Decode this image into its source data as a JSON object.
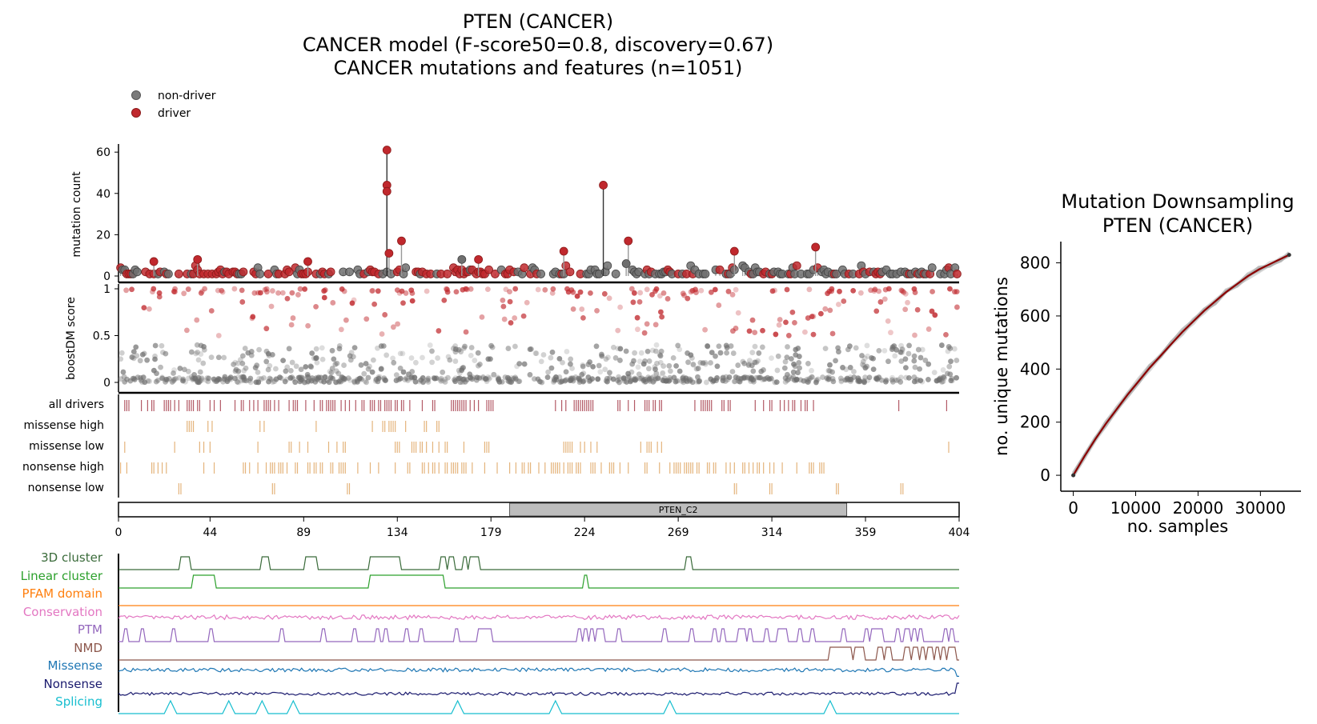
{
  "titles": {
    "main": [
      "PTEN (CANCER)",
      "CANCER model (F-score50=0.8, discovery=0.67)",
      "CANCER mutations and features (n=1051)"
    ],
    "side": [
      "Mutation Downsampling",
      "PTEN (CANCER)"
    ]
  },
  "legend": [
    {
      "label": "non-driver",
      "color": "#7a7a7a"
    },
    {
      "label": "driver",
      "color": "#c0282d"
    }
  ],
  "colors": {
    "driver": "#c0282d",
    "nondriver": "#6e6e6e",
    "alldrivers_ticks": "#b35a66",
    "csqn_ticks": "#e4b47c",
    "domain_fill": "#bdbdbd",
    "curve": "#8b0000"
  },
  "chart_data": [
    {
      "type": "scatter",
      "name": "lollipop",
      "ylabel": "mutation count",
      "ylim": [
        0,
        62
      ],
      "yticks": [
        0,
        20,
        40,
        60
      ],
      "xlim": [
        0,
        404
      ],
      "tall_stems": [
        {
          "pos": 129,
          "count": 61,
          "driver": true
        },
        {
          "pos": 129,
          "count": 44,
          "driver": true
        },
        {
          "pos": 129,
          "count": 41,
          "driver": true
        },
        {
          "pos": 130,
          "count": 11,
          "driver": true
        },
        {
          "pos": 136,
          "count": 17,
          "driver": true
        },
        {
          "pos": 233,
          "count": 44,
          "driver": true
        },
        {
          "pos": 245,
          "count": 17,
          "driver": true
        },
        {
          "pos": 214,
          "count": 12,
          "driver": true
        },
        {
          "pos": 296,
          "count": 12,
          "driver": true
        },
        {
          "pos": 335,
          "count": 14,
          "driver": true
        },
        {
          "pos": 17,
          "count": 7,
          "driver": true
        },
        {
          "pos": 38,
          "count": 8,
          "driver": true
        },
        {
          "pos": 91,
          "count": 7,
          "driver": true
        },
        {
          "pos": 165,
          "count": 8,
          "driver": false
        },
        {
          "pos": 173,
          "count": 8,
          "driver": true
        },
        {
          "pos": 244,
          "count": 6,
          "driver": false
        }
      ]
    },
    {
      "type": "scatter",
      "name": "boostDM",
      "ylabel": "boostDM score",
      "yticks": [
        0,
        0.5,
        1
      ],
      "ylim": [
        -0.02,
        1.02
      ]
    },
    {
      "type": "table",
      "name": "consequence tracks",
      "rows": [
        "all drivers",
        "missense high",
        "missense low",
        "nonsense high",
        "nonsense low"
      ],
      "domain": {
        "label": "PTEN_C2",
        "start": 188,
        "end": 350
      },
      "xticks": [
        0,
        44,
        89,
        134,
        179,
        224,
        269,
        314,
        359,
        404
      ]
    },
    {
      "type": "line",
      "name": "features",
      "tracks": [
        {
          "label": "3D cluster",
          "color": "#3a6b3a"
        },
        {
          "label": "Linear cluster",
          "color": "#2ca02c"
        },
        {
          "label": "PFAM domain",
          "color": "#ff7f0e"
        },
        {
          "label": "Conservation",
          "color": "#e377c2"
        },
        {
          "label": "PTM",
          "color": "#9467bd"
        },
        {
          "label": "NMD",
          "color": "#8c564b"
        },
        {
          "label": "Missense",
          "color": "#1f77b4"
        },
        {
          "label": "Nonsense",
          "color": "#1a1a6e"
        },
        {
          "label": "Splicing",
          "color": "#17becf"
        }
      ],
      "steps": {
        "3D cluster": [
          [
            30,
            34
          ],
          [
            69,
            72
          ],
          [
            90,
            92
          ],
          [
            93,
            95
          ],
          [
            121,
            131
          ],
          [
            132,
            133
          ],
          [
            134,
            135
          ],
          [
            155,
            157
          ],
          [
            159,
            161
          ],
          [
            166,
            167
          ],
          [
            169,
            170
          ],
          [
            171,
            173
          ],
          [
            273,
            275
          ]
        ],
        "Linear cluster": [
          [
            36,
            46
          ],
          [
            121,
            156
          ],
          [
            224,
            225
          ]
        ],
        "PTM": [
          [
            3,
            4
          ],
          [
            11,
            12
          ],
          [
            26,
            27
          ],
          [
            44,
            45
          ],
          [
            78,
            79
          ],
          [
            98,
            99
          ],
          [
            113,
            114
          ],
          [
            124,
            125
          ],
          [
            128,
            129
          ],
          [
            138,
            139
          ],
          [
            145,
            146
          ],
          [
            162,
            163
          ],
          [
            173,
            179
          ],
          [
            221,
            222
          ],
          [
            224,
            225
          ],
          [
            227,
            228
          ],
          [
            230,
            231
          ],
          [
            232,
            233
          ],
          [
            240,
            241
          ],
          [
            262,
            263
          ],
          [
            275,
            276
          ],
          [
            286,
            287
          ],
          [
            290,
            291
          ],
          [
            298,
            299
          ],
          [
            300,
            301
          ],
          [
            303,
            304
          ],
          [
            311,
            312
          ],
          [
            317,
            318
          ],
          [
            319,
            321
          ],
          [
            327,
            328
          ],
          [
            333,
            334
          ],
          [
            348,
            349
          ],
          [
            359,
            360
          ],
          [
            362,
            363
          ],
          [
            364,
            365
          ],
          [
            366,
            367
          ],
          [
            374,
            375
          ],
          [
            378,
            379
          ],
          [
            379,
            380
          ],
          [
            382,
            383
          ],
          [
            385,
            386
          ],
          [
            397,
            398
          ],
          [
            400,
            401
          ]
        ],
        "NMD": [
          [
            342,
            344
          ],
          [
            345,
            347
          ],
          [
            348,
            350
          ],
          [
            351,
            352
          ],
          [
            354,
            356
          ],
          [
            357,
            358
          ],
          [
            365,
            367
          ],
          [
            369,
            371
          ],
          [
            378,
            380
          ],
          [
            382,
            384
          ],
          [
            386,
            387
          ],
          [
            389,
            391
          ],
          [
            393,
            394
          ],
          [
            396,
            397
          ],
          [
            399,
            400
          ],
          [
            401,
            402
          ]
        ],
        "Splicing": [
          [
            25,
            25
          ],
          [
            53,
            53
          ],
          [
            69,
            69
          ],
          [
            84,
            84
          ],
          [
            163,
            163
          ],
          [
            210,
            210
          ],
          [
            265,
            265
          ],
          [
            342,
            342
          ]
        ]
      }
    },
    {
      "type": "line",
      "name": "downsampling",
      "title": "Mutation Downsampling PTEN (CANCER)",
      "xlabel": "no. samples",
      "ylabel": "no. unique mutations",
      "xlim": [
        -2000,
        36500
      ],
      "ylim": [
        -60,
        880
      ],
      "xticks": [
        0,
        10000,
        20000,
        30000
      ],
      "yticks": [
        0,
        200,
        400,
        600,
        800
      ],
      "x": [
        0,
        1750,
        3500,
        5250,
        7000,
        8750,
        10500,
        12250,
        14000,
        15750,
        17500,
        19250,
        21000,
        22750,
        24500,
        26250,
        28000,
        29750,
        31500,
        33250,
        34600
      ],
      "y": [
        0,
        70,
        135,
        195,
        250,
        305,
        355,
        405,
        450,
        495,
        540,
        580,
        620,
        655,
        690,
        720,
        750,
        775,
        795,
        815,
        830
      ]
    }
  ]
}
